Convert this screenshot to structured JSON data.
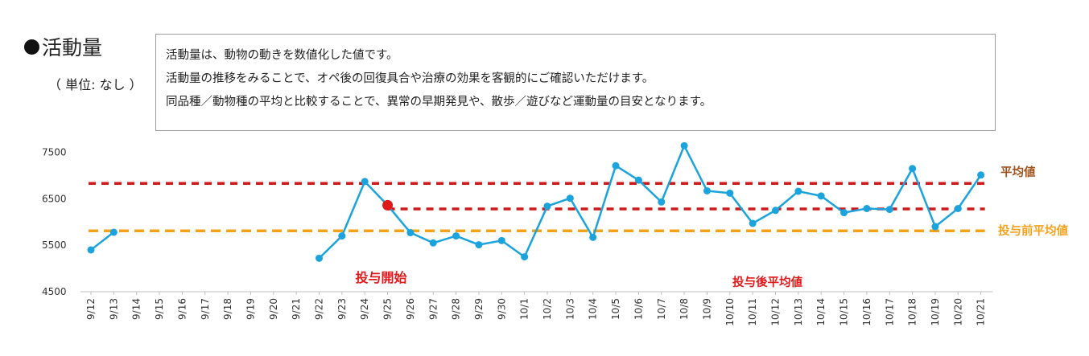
{
  "header": {
    "title": "活動量",
    "unit": "（ 単位: なし ）"
  },
  "description": {
    "lines": [
      "活動量は、動物の動きを数値化した値です。",
      "活動量の推移をみることで、オペ後の回復具合や治療の効果を客観的にご確認いただけます。",
      "同品種／動物種の平均と比較することで、異常の早期発見や、散歩／遊びなど運動量の目安となります。"
    ]
  },
  "colors": {
    "series": "#1aa3dc",
    "average": "#cc1a1a",
    "pre_average": "#f5a21b",
    "avg_label": "#a0521c",
    "marker": "#e01a1a"
  },
  "chart_data": {
    "type": "line",
    "categories": [
      "9/12",
      "9/13",
      "9/14",
      "9/15",
      "9/16",
      "9/17",
      "9/18",
      "9/19",
      "9/20",
      "9/21",
      "9/22",
      "9/23",
      "9/24",
      "9/25",
      "9/26",
      "9/27",
      "9/28",
      "9/29",
      "9/30",
      "10/1",
      "10/2",
      "10/3",
      "10/4",
      "10/5",
      "10/6",
      "10/7",
      "10/8",
      "10/9",
      "10/10",
      "10/11",
      "10/12",
      "10/13",
      "10/14",
      "10/15",
      "10/16",
      "10/17",
      "10/18",
      "10/19",
      "10/20",
      "10/21"
    ],
    "series": [
      {
        "name": "活動量",
        "values": [
          5400,
          5780,
          null,
          null,
          null,
          null,
          null,
          null,
          null,
          null,
          5220,
          5700,
          6870,
          6360,
          5770,
          5550,
          5700,
          5510,
          5600,
          5250,
          6340,
          6510,
          5670,
          7210,
          6900,
          6430,
          7640,
          6670,
          6620,
          5970,
          6250,
          6660,
          6560,
          6200,
          6290,
          6270,
          7150,
          5900,
          6290,
          7010
        ]
      }
    ],
    "reference_lines": [
      {
        "name": "平均値",
        "value": 6830,
        "from": "9/12",
        "to": "10/21"
      },
      {
        "name": "投与後平均値",
        "value": 6280,
        "from": "9/25",
        "to": "10/21"
      },
      {
        "name": "投与前平均値",
        "value": 5810,
        "from": "9/12",
        "to": "10/21"
      }
    ],
    "annotations": [
      {
        "text": "投与開始",
        "category": "9/25"
      },
      {
        "text": "投与後平均値",
        "category": "10/12"
      }
    ],
    "highlight_point": {
      "category": "9/25",
      "value": 6360
    },
    "yticks": [
      4500,
      5500,
      6500,
      7500
    ],
    "ylim": [
      4500,
      7750
    ],
    "xlabel": "",
    "ylabel": ""
  }
}
